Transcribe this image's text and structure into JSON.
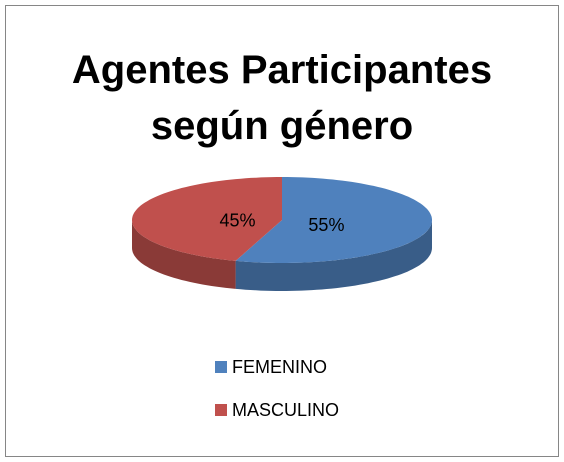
{
  "chart_data": {
    "type": "pie",
    "title": "Agentes Participantes según género",
    "categories": [
      "FEMENINO",
      "MASCULINO"
    ],
    "values": [
      55,
      45
    ],
    "value_labels": [
      "55%",
      "45%"
    ],
    "colors": [
      "#4f81bd",
      "#c0504d"
    ],
    "legend": "bottom"
  }
}
